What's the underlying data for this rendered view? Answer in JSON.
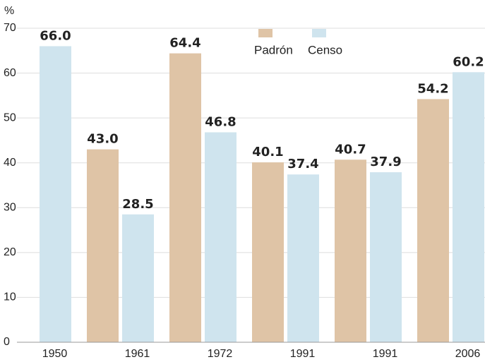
{
  "chart_data": {
    "type": "bar",
    "y_label": "%",
    "categories": [
      "1950",
      "1961",
      "1972",
      "1991",
      "1991",
      "2006"
    ],
    "series": [
      {
        "name": "Padrón",
        "color": "#dfc4a6",
        "values": [
          null,
          43.0,
          64.4,
          40.1,
          40.7,
          54.2
        ],
        "value_labels": [
          null,
          "43.0",
          "64.4",
          "40.1",
          "40.7",
          "54.2"
        ]
      },
      {
        "name": "Censo",
        "color": "#cfe4ee",
        "values": [
          66.0,
          28.5,
          46.8,
          37.4,
          37.9,
          60.2
        ],
        "value_labels": [
          "66.0",
          "28.5",
          "46.8",
          "37.4",
          "37.9",
          "60.2"
        ]
      }
    ],
    "ylim": [
      0,
      70
    ],
    "yticks": [
      0,
      10,
      20,
      30,
      40,
      50,
      60,
      70
    ],
    "grid": true,
    "legend": "top"
  }
}
